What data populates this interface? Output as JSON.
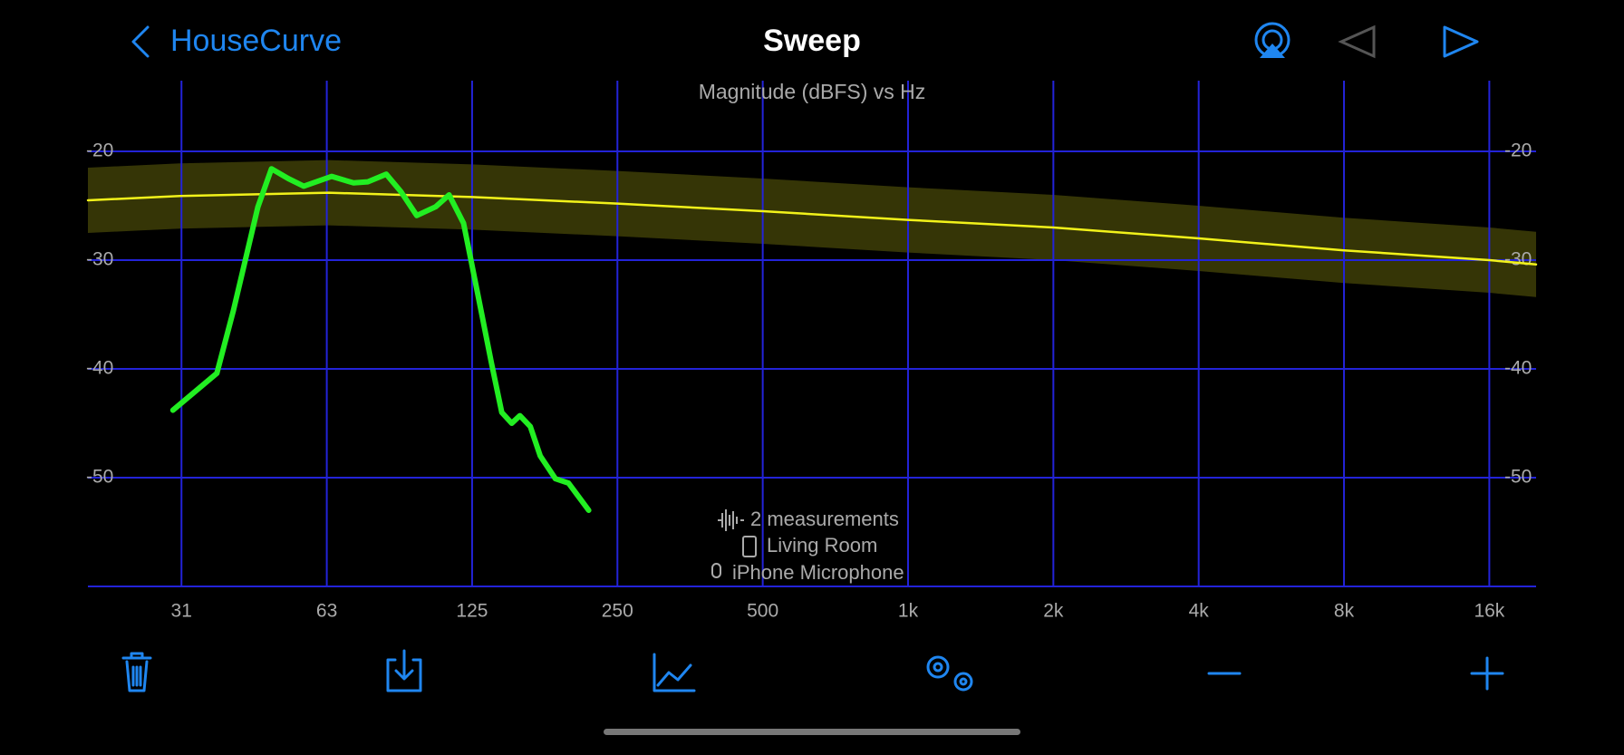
{
  "nav": {
    "back": "HouseCurve",
    "title": "Sweep"
  },
  "info": {
    "measurements": "2 measurements",
    "speaker": "Living Room",
    "microphone": "iPhone Microphone"
  },
  "chart_data": {
    "type": "line",
    "title": "Magnitude (dBFS) vs Hz",
    "xscale": "log",
    "grid": true,
    "xlim": [
      20,
      20000
    ],
    "ylim": [
      -60,
      -13.5
    ],
    "xticks": [
      {
        "value": 31.25,
        "label": "31"
      },
      {
        "value": 62.5,
        "label": "63"
      },
      125,
      250,
      500,
      {
        "value": 1000,
        "label": "1k"
      },
      {
        "value": 2000,
        "label": "2k"
      },
      {
        "value": 4000,
        "label": "4k"
      },
      {
        "value": 8000,
        "label": "8k"
      },
      {
        "value": 16000,
        "label": "16k"
      }
    ],
    "yticks": [
      -20,
      -30,
      -40,
      -50
    ],
    "series": [
      {
        "color": "#22ee22",
        "x": [
          30,
          37,
          40,
          45,
          48,
          52,
          56,
          64,
          71,
          76,
          83,
          89,
          96,
          105,
          112,
          120,
          128,
          137,
          144,
          151,
          157,
          165,
          173,
          186,
          198,
          218
        ],
        "values": [
          -43.8,
          -40.4,
          -34.7,
          -25.1,
          -21.6,
          -22.5,
          -23.2,
          -22.3,
          -22.9,
          -22.8,
          -22.1,
          -23.7,
          -25.9,
          -25.1,
          -24,
          -26.6,
          -32.8,
          -39.4,
          -44,
          -45,
          -44.3,
          -45.3,
          -48,
          -50.1,
          -50.5,
          -53
        ]
      },
      {
        "color": "#f2f21a",
        "tolerance": 3,
        "x": [
          20,
          31,
          63,
          125,
          250,
          500,
          1000,
          2000,
          4000,
          8000,
          16000,
          20000
        ],
        "values": [
          -24.5,
          -24.1,
          -23.8,
          -24.2,
          -24.8,
          -25.5,
          -26.3,
          -27,
          -28,
          -29.1,
          -30,
          -30.4
        ]
      }
    ]
  }
}
